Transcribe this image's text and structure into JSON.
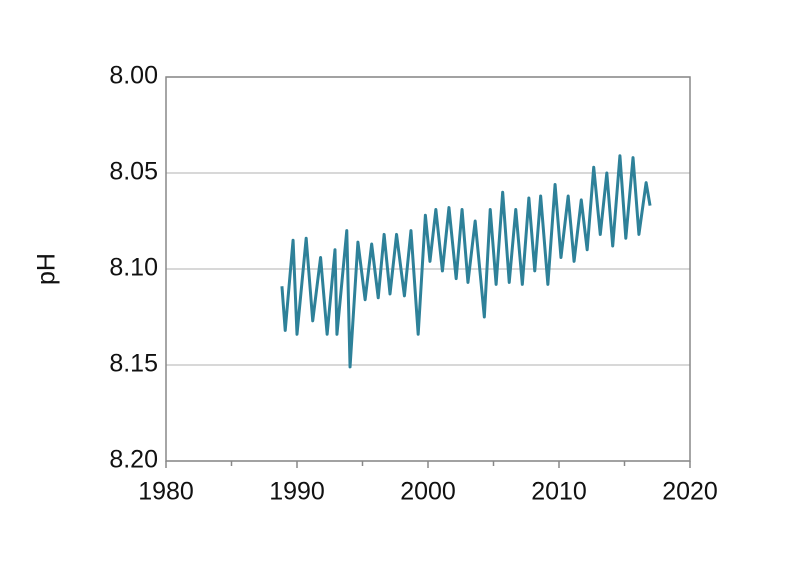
{
  "chart_data": {
    "type": "line",
    "y_label": "pH",
    "x": [
      1988.85,
      1989.1,
      1989.7,
      1990.0,
      1990.7,
      1991.2,
      1991.8,
      1992.3,
      1992.9,
      1993.05,
      1993.8,
      1994.05,
      1994.65,
      1995.2,
      1995.7,
      1996.2,
      1996.65,
      1997.1,
      1997.6,
      1998.2,
      1998.7,
      1999.25,
      1999.8,
      2000.15,
      2000.6,
      2001.1,
      2001.6,
      2002.15,
      2002.6,
      2003.05,
      2003.6,
      2004.3,
      2004.75,
      2005.2,
      2005.7,
      2006.2,
      2006.7,
      2007.2,
      2007.7,
      2008.15,
      2008.6,
      2009.15,
      2009.7,
      2010.15,
      2010.7,
      2011.15,
      2011.7,
      2012.15,
      2012.65,
      2013.15,
      2013.65,
      2014.1,
      2014.65,
      2015.1,
      2015.65,
      2016.1,
      2016.65,
      2016.95
    ],
    "series": [
      {
        "color": "#2e8199",
        "values": [
          8.109,
          8.132,
          8.085,
          8.134,
          8.084,
          8.127,
          8.094,
          8.134,
          8.09,
          8.134,
          8.08,
          8.151,
          8.086,
          8.116,
          8.087,
          8.115,
          8.082,
          8.113,
          8.082,
          8.114,
          8.08,
          8.134,
          8.072,
          8.096,
          8.069,
          8.101,
          8.068,
          8.105,
          8.069,
          8.107,
          8.075,
          8.125,
          8.069,
          8.108,
          8.06,
          8.107,
          8.069,
          8.108,
          8.063,
          8.101,
          8.062,
          8.108,
          8.056,
          8.094,
          8.062,
          8.096,
          8.064,
          8.09,
          8.047,
          8.082,
          8.05,
          8.088,
          8.041,
          8.084,
          8.042,
          8.082,
          8.055,
          8.067
        ]
      }
    ],
    "xlim": [
      1980,
      2020
    ],
    "xticks": [
      1980,
      1990,
      2000,
      2010,
      2020
    ],
    "xminorticks": [
      1985,
      1995,
      2005,
      2015
    ],
    "ylim": [
      8.2,
      8.0
    ],
    "yticks": [
      {
        "value": 8.0,
        "label": "8.00"
      },
      8.05,
      {
        "value": 8.1,
        "label": "8.10"
      },
      8.15,
      {
        "value": 8.2,
        "label": "8.20"
      }
    ],
    "grid": true
  }
}
